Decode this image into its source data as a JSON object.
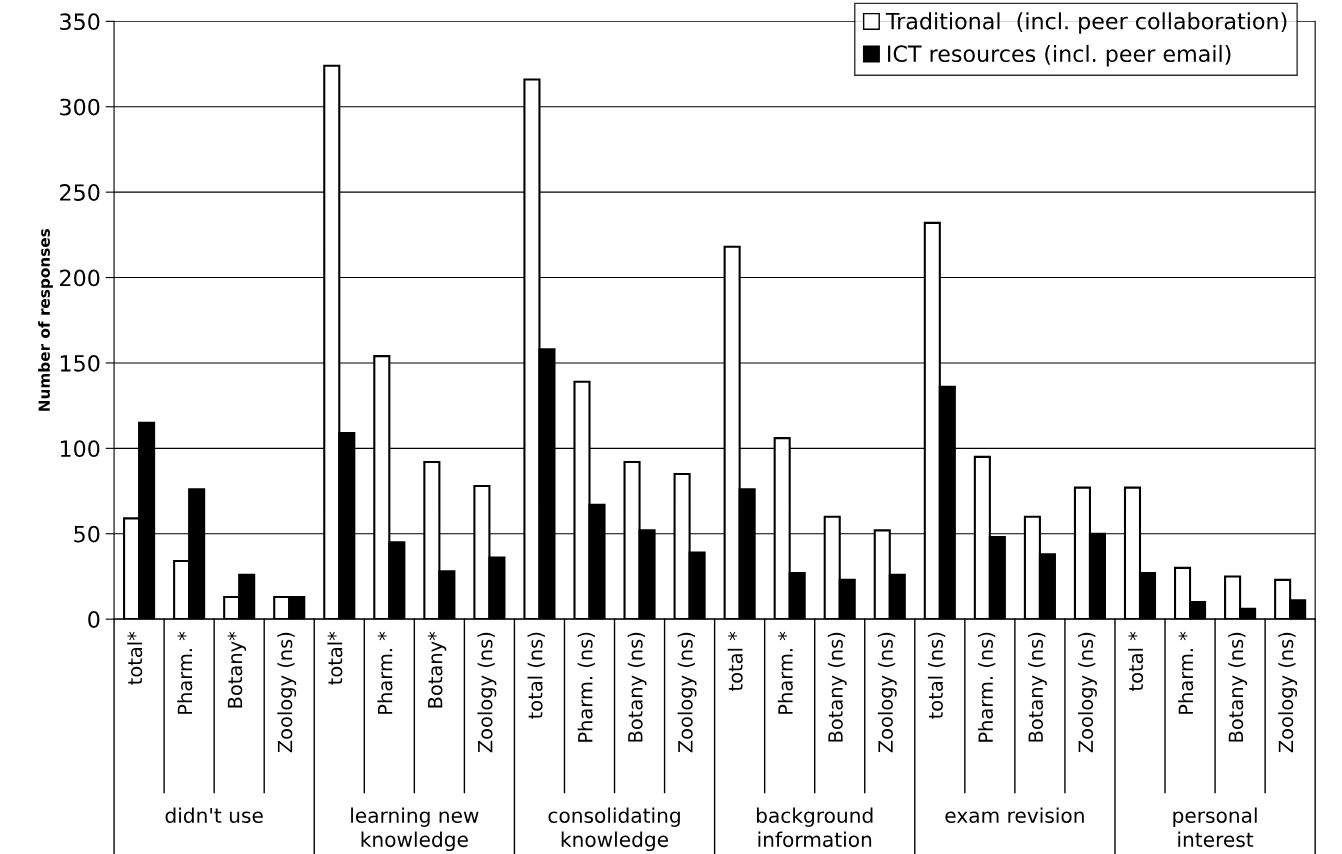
{
  "chart_data": {
    "type": "bar",
    "ylabel": "Number of responses",
    "categories": [
      "total*",
      "Pharm. *",
      "Botany*",
      "Zoology (ns)",
      "total*",
      "Pharm. *",
      "Botany*",
      "Zoology (ns)",
      "total (ns)",
      "Pharm. (ns)",
      "Botany (ns)",
      "Zoology (ns)",
      "total *",
      "Pharm. *",
      "Botany (ns)",
      "Zoology (ns)",
      "total (ns)",
      "Pharm. (ns)",
      "Botany (ns)",
      "Zoology (ns)",
      "total *",
      "Pharm. *",
      "Botany (ns)",
      "Zoology (ns)"
    ],
    "series": [
      {
        "name": "Traditional  (incl. peer collaboration)",
        "color": "#ffffff",
        "values": [
          59,
          34,
          13,
          13,
          324,
          154,
          92,
          78,
          316,
          139,
          92,
          85,
          218,
          106,
          60,
          52,
          232,
          95,
          60,
          77,
          77,
          30,
          25,
          23
        ]
      },
      {
        "name": "ICT resources (incl. peer email)",
        "color": "#000000",
        "values": [
          115,
          76,
          26,
          13,
          109,
          45,
          28,
          36,
          158,
          67,
          52,
          39,
          76,
          27,
          23,
          26,
          136,
          48,
          38,
          50,
          27,
          10,
          6,
          11
        ]
      }
    ],
    "annotations": [
      "didn't use",
      "learning new knowledge",
      "consolidating knowledge",
      "background information",
      "exam revision",
      "personal interest"
    ],
    "ylim": [
      0,
      350
    ],
    "yticks": [
      0,
      50,
      100,
      150,
      200,
      250,
      300,
      350
    ],
    "grid": "y",
    "legend": "top right"
  }
}
